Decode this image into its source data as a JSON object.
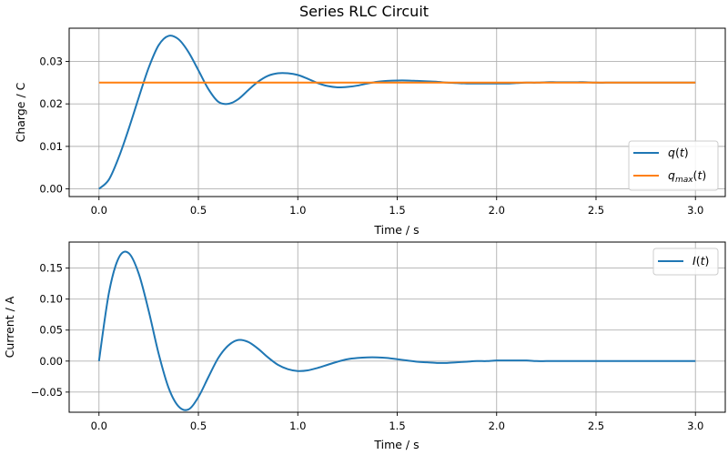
{
  "title": "Series RLC Circuit",
  "colors": {
    "q": "#1f77b4",
    "qmax": "#ff7f0e",
    "I": "#1f77b4"
  },
  "chart_data": [
    {
      "type": "line",
      "xlabel": "Time / s",
      "ylabel": "Charge / C",
      "xlim": [
        -0.15,
        3.15
      ],
      "ylim": [
        -0.0018,
        0.0378
      ],
      "xticks": [
        0.0,
        0.5,
        1.0,
        1.5,
        2.0,
        2.5,
        3.0
      ],
      "xtick_labels": [
        "0.0",
        "0.5",
        "1.0",
        "1.5",
        "2.0",
        "2.5",
        "3.0"
      ],
      "yticks": [
        0.0,
        0.01,
        0.02,
        0.03
      ],
      "ytick_labels": [
        "0.00",
        "0.01",
        "0.02",
        "0.03"
      ],
      "grid": true,
      "legend_position": "lower-right",
      "x": [
        0.0,
        0.05,
        0.1,
        0.15,
        0.2,
        0.25,
        0.3,
        0.35,
        0.4,
        0.45,
        0.5,
        0.55,
        0.6,
        0.65,
        0.7,
        0.75,
        0.8,
        0.85,
        0.9,
        0.95,
        1.0,
        1.05,
        1.1,
        1.15,
        1.2,
        1.25,
        1.3,
        1.35,
        1.4,
        1.45,
        1.5,
        1.55,
        1.6,
        1.65,
        1.7,
        1.75,
        1.8,
        1.85,
        1.9,
        1.95,
        2.0,
        2.05,
        2.1,
        2.15,
        2.2,
        2.25,
        2.3,
        2.35,
        2.4,
        2.45,
        2.5,
        2.55,
        2.6,
        2.65,
        2.7,
        2.75,
        2.8,
        2.85,
        2.9,
        2.95,
        3.0
      ],
      "series": [
        {
          "key": "q",
          "name": "q(t)",
          "values": [
            0.0,
            0.0022,
            0.0075,
            0.0142,
            0.0215,
            0.0285,
            0.0338,
            0.036,
            0.0352,
            0.0322,
            0.0279,
            0.0235,
            0.0205,
            0.02,
            0.0211,
            0.0232,
            0.0252,
            0.0266,
            0.0272,
            0.0272,
            0.0268,
            0.0259,
            0.0249,
            0.0242,
            0.0239,
            0.024,
            0.0243,
            0.0248,
            0.0252,
            0.0254,
            0.0255,
            0.0255,
            0.0254,
            0.0253,
            0.0252,
            0.025,
            0.0249,
            0.0248,
            0.0248,
            0.0248,
            0.0248,
            0.0248,
            0.0249,
            0.025,
            0.025,
            0.0251,
            0.0251,
            0.0251,
            0.0251,
            0.0251,
            0.025,
            0.025,
            0.025,
            0.025,
            0.025,
            0.025,
            0.025,
            0.025,
            0.025,
            0.025,
            0.025
          ]
        },
        {
          "key": "qmax",
          "name": "q_max(t)",
          "values": [
            0.025,
            0.025,
            0.025,
            0.025,
            0.025,
            0.025,
            0.025,
            0.025,
            0.025,
            0.025,
            0.025,
            0.025,
            0.025,
            0.025,
            0.025,
            0.025,
            0.025,
            0.025,
            0.025,
            0.025,
            0.025,
            0.025,
            0.025,
            0.025,
            0.025,
            0.025,
            0.025,
            0.025,
            0.025,
            0.025,
            0.025,
            0.025,
            0.025,
            0.025,
            0.025,
            0.025,
            0.025,
            0.025,
            0.025,
            0.025,
            0.025,
            0.025,
            0.025,
            0.025,
            0.025,
            0.025,
            0.025,
            0.025,
            0.025,
            0.025,
            0.025,
            0.025,
            0.025,
            0.025,
            0.025,
            0.025,
            0.025,
            0.025,
            0.025,
            0.025,
            0.025
          ]
        }
      ]
    },
    {
      "type": "line",
      "xlabel": "Time / s",
      "ylabel": "Current / A",
      "xlim": [
        -0.15,
        3.15
      ],
      "ylim": [
        -0.0825,
        0.192
      ],
      "xticks": [
        0.0,
        0.5,
        1.0,
        1.5,
        2.0,
        2.5,
        3.0
      ],
      "xtick_labels": [
        "0.0",
        "0.5",
        "1.0",
        "1.5",
        "2.0",
        "2.5",
        "3.0"
      ],
      "yticks": [
        -0.05,
        0.0,
        0.05,
        0.1,
        0.15
      ],
      "ytick_labels": [
        "−0.05",
        "0.00",
        "0.05",
        "0.10",
        "0.15"
      ],
      "grid": true,
      "legend_position": "top-right",
      "x": [
        0.0,
        0.05,
        0.1,
        0.15,
        0.2,
        0.25,
        0.3,
        0.35,
        0.4,
        0.45,
        0.5,
        0.55,
        0.6,
        0.65,
        0.7,
        0.75,
        0.8,
        0.85,
        0.9,
        0.95,
        1.0,
        1.05,
        1.1,
        1.15,
        1.2,
        1.25,
        1.3,
        1.35,
        1.4,
        1.45,
        1.5,
        1.55,
        1.6,
        1.65,
        1.7,
        1.75,
        1.8,
        1.85,
        1.9,
        1.95,
        2.0,
        2.05,
        2.1,
        2.15,
        2.2,
        2.25,
        2.3,
        2.35,
        2.4,
        2.45,
        2.5,
        2.55,
        2.6,
        2.65,
        2.7,
        2.75,
        2.8,
        2.85,
        2.9,
        2.95,
        3.0
      ],
      "series": [
        {
          "key": "I",
          "name": "I(t)",
          "values": [
            0.0,
            0.11,
            0.167,
            0.174,
            0.141,
            0.081,
            0.012,
            -0.043,
            -0.073,
            -0.078,
            -0.058,
            -0.026,
            0.005,
            0.025,
            0.034,
            0.031,
            0.02,
            0.006,
            -0.006,
            -0.013,
            -0.016,
            -0.015,
            -0.011,
            -0.006,
            -0.001,
            0.003,
            0.005,
            0.006,
            0.006,
            0.005,
            0.003,
            0.001,
            -0.001,
            -0.002,
            -0.003,
            -0.003,
            -0.002,
            -0.001,
            0.0,
            0.0,
            0.001,
            0.001,
            0.001,
            0.001,
            0.0,
            0.0,
            0.0,
            0.0,
            0.0,
            0.0,
            0.0,
            0.0,
            0.0,
            0.0,
            0.0,
            0.0,
            0.0,
            0.0,
            0.0,
            0.0,
            0.0
          ]
        }
      ]
    }
  ]
}
